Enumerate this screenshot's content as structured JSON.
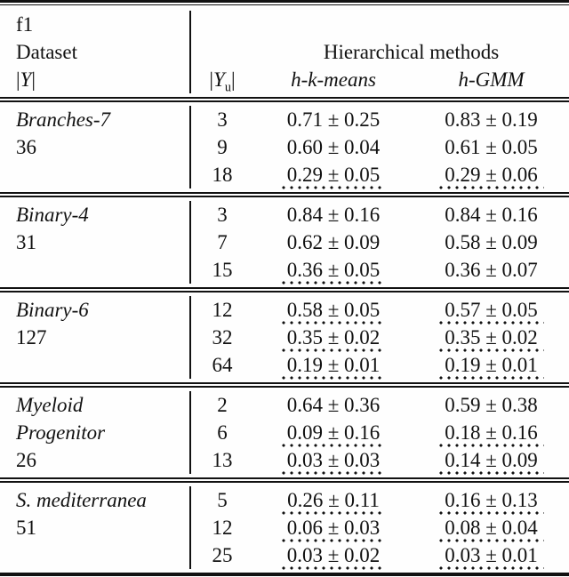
{
  "table": {
    "metric_label": "f1",
    "header": {
      "dataset_label": "Dataset",
      "bar": "|",
      "y_letter": "Y",
      "yu_sub": "u",
      "group_label": "Hierarchical methods",
      "method1_label": "h-k-means",
      "method2_label": "h-GMM"
    },
    "sections": [
      {
        "name1": "Branches-7",
        "name2": "",
        "size": "36",
        "rows": [
          {
            "yu": "3",
            "hkmeans": "0.71 ± 0.25",
            "hgmm": "0.83 ± 0.19",
            "hkmeans_dotted": false,
            "hgmm_dotted": false
          },
          {
            "yu": "9",
            "hkmeans": "0.60 ± 0.04",
            "hgmm": "0.61 ± 0.05",
            "hkmeans_dotted": false,
            "hgmm_dotted": false
          },
          {
            "yu": "18",
            "hkmeans": "0.29 ± 0.05",
            "hgmm": "0.29 ± 0.06",
            "hkmeans_dotted": true,
            "hgmm_dotted": true
          }
        ]
      },
      {
        "name1": "Binary-4",
        "name2": "",
        "size": "31",
        "rows": [
          {
            "yu": "3",
            "hkmeans": "0.84 ± 0.16",
            "hgmm": "0.84 ± 0.16",
            "hkmeans_dotted": false,
            "hgmm_dotted": false
          },
          {
            "yu": "7",
            "hkmeans": "0.62 ± 0.09",
            "hgmm": "0.58 ± 0.09",
            "hkmeans_dotted": false,
            "hgmm_dotted": false
          },
          {
            "yu": "15",
            "hkmeans": "0.36 ± 0.05",
            "hgmm": "0.36 ± 0.07",
            "hkmeans_dotted": true,
            "hgmm_dotted": false
          }
        ]
      },
      {
        "name1": "Binary-6",
        "name2": "",
        "size": "127",
        "rows": [
          {
            "yu": "12",
            "hkmeans": "0.58 ± 0.05",
            "hgmm": "0.57 ± 0.05",
            "hkmeans_dotted": true,
            "hgmm_dotted": true
          },
          {
            "yu": "32",
            "hkmeans": "0.35 ± 0.02",
            "hgmm": "0.35 ± 0.02",
            "hkmeans_dotted": true,
            "hgmm_dotted": true
          },
          {
            "yu": "64",
            "hkmeans": "0.19 ± 0.01",
            "hgmm": "0.19 ± 0.01",
            "hkmeans_dotted": true,
            "hgmm_dotted": true
          }
        ]
      },
      {
        "name1": "Myeloid",
        "name2": "Progenitor",
        "size": "26",
        "rows": [
          {
            "yu": "2",
            "hkmeans": "0.64 ± 0.36",
            "hgmm": "0.59 ± 0.38",
            "hkmeans_dotted": false,
            "hgmm_dotted": false
          },
          {
            "yu": "6",
            "hkmeans": "0.09 ± 0.16",
            "hgmm": "0.18 ± 0.16",
            "hkmeans_dotted": true,
            "hgmm_dotted": true
          },
          {
            "yu": "13",
            "hkmeans": "0.03 ± 0.03",
            "hgmm": "0.14 ± 0.09",
            "hkmeans_dotted": true,
            "hgmm_dotted": true
          }
        ]
      },
      {
        "name1": "S. mediterranea",
        "name2": "",
        "size": "51",
        "rows": [
          {
            "yu": "5",
            "hkmeans": "0.26 ± 0.11",
            "hgmm": "0.16 ± 0.13",
            "hkmeans_dotted": true,
            "hgmm_dotted": true
          },
          {
            "yu": "12",
            "hkmeans": "0.06 ± 0.03",
            "hgmm": "0.08 ± 0.04",
            "hkmeans_dotted": true,
            "hgmm_dotted": true
          },
          {
            "yu": "25",
            "hkmeans": "0.03 ± 0.02",
            "hgmm": "0.03 ± 0.01",
            "hkmeans_dotted": true,
            "hgmm_dotted": true
          }
        ]
      }
    ],
    "colors": {
      "text": "#111111",
      "background": "#fefefe",
      "rule": "#111111"
    }
  }
}
